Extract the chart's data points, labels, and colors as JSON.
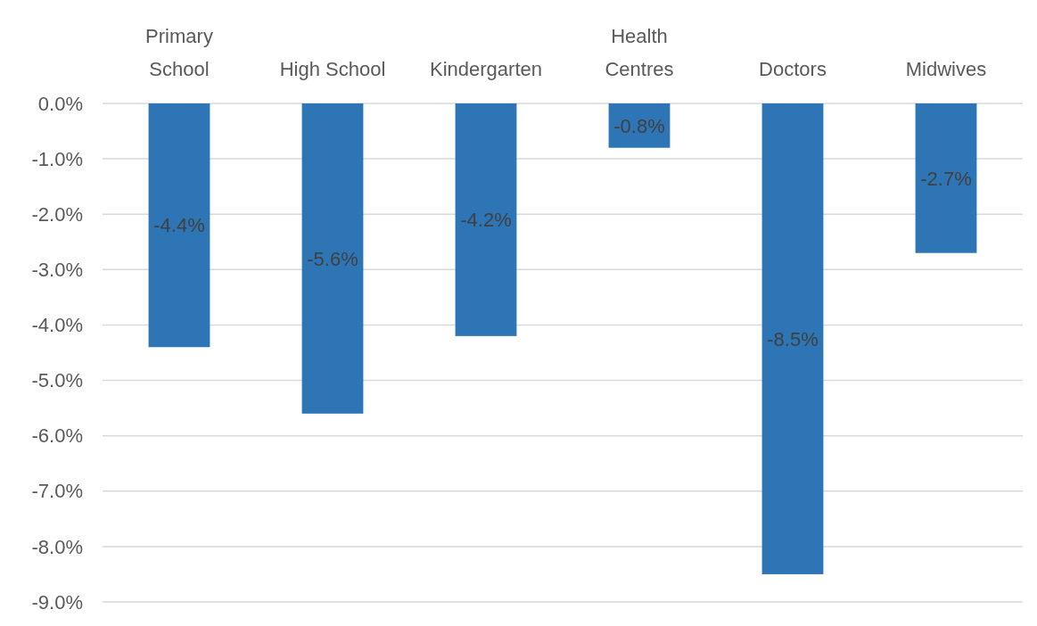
{
  "chart_data": {
    "type": "bar",
    "categories": [
      "Primary School",
      "High School",
      "Kindergarten",
      "Health Centres",
      "Doctors",
      "Midwives"
    ],
    "values": [
      -4.4,
      -5.6,
      -4.2,
      -0.8,
      -8.5,
      -2.7
    ],
    "value_labels": [
      "-4.4%",
      "-5.6%",
      "-4.2%",
      "-0.8%",
      "-8.5%",
      "-2.7%"
    ],
    "color": "#2e75b6",
    "ylim": [
      -9,
      0
    ],
    "yticks": [
      {
        "value": 0,
        "label": "0.0%"
      },
      {
        "value": -1,
        "label": "-1.0%"
      },
      {
        "value": -2,
        "label": "-2.0%"
      },
      {
        "value": -3,
        "label": "-3.0%"
      },
      {
        "value": -4,
        "label": "-4.0%"
      },
      {
        "value": -5,
        "label": "-5.0%"
      },
      {
        "value": -6,
        "label": "-6.0%"
      },
      {
        "value": -7,
        "label": "-7.0%"
      },
      {
        "value": -8,
        "label": "-8.0%"
      },
      {
        "value": -9,
        "label": "-9.0%"
      }
    ],
    "grid": "y"
  }
}
